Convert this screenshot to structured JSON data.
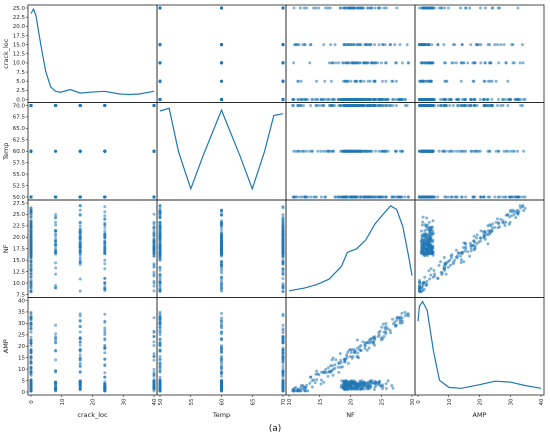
{
  "caption": "(a)",
  "colors": {
    "point": "#1f77b4",
    "kde": "#1f77b4",
    "axis": "#222222"
  },
  "chart_data": {
    "type": "scatter",
    "kind": "scatter-matrix",
    "variables": [
      "crack_loc",
      "Temp",
      "NF",
      "AMP"
    ],
    "diagonal": "kde",
    "grid": false,
    "ranges": {
      "crack_loc": [
        0,
        25
      ],
      "Temp": [
        50,
        70
      ],
      "NF": [
        7.5,
        27.5
      ],
      "AMP": [
        0,
        40
      ]
    },
    "y_ticks": {
      "crack_loc": [
        "0.0",
        "2.5",
        "5.0",
        "7.5",
        "10.0",
        "12.5",
        "15.0",
        "17.5",
        "20.0",
        "22.5",
        "25.0"
      ],
      "Temp": [
        "50.0",
        "52.5",
        "55.0",
        "57.5",
        "60.0",
        "62.5",
        "65.0",
        "67.5",
        "70.0"
      ],
      "NF": [
        "7.5",
        "10.0",
        "12.5",
        "15.0",
        "17.5",
        "20.0",
        "22.5",
        "25.0",
        "27.5"
      ],
      "AMP": [
        "0",
        "5",
        "10",
        "15",
        "20",
        "25",
        "30",
        "35",
        "40"
      ]
    },
    "x_ticks": {
      "crack_loc": [
        "0",
        "10",
        "20",
        "30",
        "40"
      ],
      "Temp": [
        "50",
        "55",
        "60",
        "65",
        "70"
      ],
      "NF": [
        "10",
        "15",
        "20",
        "25",
        "30"
      ],
      "AMP": [
        "0",
        "10",
        "20",
        "30",
        "40"
      ]
    },
    "crack_loc_levels": [
      0,
      5,
      10,
      15,
      25
    ],
    "temp_levels": [
      50,
      60,
      70
    ],
    "kde": {
      "crack_loc": [
        [
          0,
          0.95
        ],
        [
          0.5,
          1.0
        ],
        [
          1,
          0.93
        ],
        [
          2,
          0.6
        ],
        [
          3,
          0.3
        ],
        [
          4,
          0.13
        ],
        [
          5,
          0.08
        ],
        [
          6,
          0.07
        ],
        [
          8,
          0.1
        ],
        [
          10,
          0.06
        ],
        [
          12,
          0.07
        ],
        [
          15,
          0.08
        ],
        [
          18,
          0.05
        ],
        [
          20,
          0.045
        ],
        [
          22,
          0.05
        ],
        [
          25,
          0.08
        ]
      ],
      "Temp": [
        [
          50,
          0.95
        ],
        [
          51.5,
          0.98
        ],
        [
          53,
          0.5
        ],
        [
          55,
          0.08
        ],
        [
          57,
          0.45
        ],
        [
          60,
          0.96
        ],
        [
          63,
          0.45
        ],
        [
          65,
          0.08
        ],
        [
          67,
          0.5
        ],
        [
          68.5,
          0.9
        ],
        [
          70,
          0.92
        ]
      ],
      "NF": [
        [
          7.5,
          0.03
        ],
        [
          10,
          0.06
        ],
        [
          12,
          0.1
        ],
        [
          14,
          0.16
        ],
        [
          16,
          0.3
        ],
        [
          17,
          0.46
        ],
        [
          18.5,
          0.5
        ],
        [
          20,
          0.6
        ],
        [
          21.5,
          0.78
        ],
        [
          23,
          0.9
        ],
        [
          24,
          0.98
        ],
        [
          25,
          0.94
        ],
        [
          26,
          0.75
        ],
        [
          27,
          0.4
        ],
        [
          27.5,
          0.2
        ]
      ],
      "AMP": [
        [
          0,
          0.78
        ],
        [
          0.5,
          0.95
        ],
        [
          1.5,
          1.0
        ],
        [
          3,
          0.9
        ],
        [
          5,
          0.45
        ],
        [
          7,
          0.12
        ],
        [
          10,
          0.04
        ],
        [
          14,
          0.03
        ],
        [
          20,
          0.07
        ],
        [
          25,
          0.11
        ],
        [
          30,
          0.1
        ],
        [
          35,
          0.06
        ],
        [
          40,
          0.03
        ]
      ]
    }
  }
}
